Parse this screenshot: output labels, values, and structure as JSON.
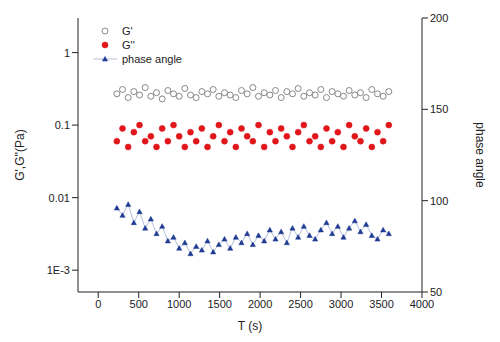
{
  "chart_data": {
    "type": "scatter",
    "x_label": "T (s)",
    "y_label": "G',G''(Pa)",
    "y2_label": "phase angle",
    "log": "y",
    "grid": false,
    "legend": "top-left",
    "xlim": [
      -250,
      4000
    ],
    "xticks": [
      0,
      500,
      1000,
      1500,
      2000,
      2500,
      3000,
      3500,
      4000
    ],
    "ylim": [
      0.0005,
      3
    ],
    "yticks": [
      {
        "value": 0.001,
        "label": "1E-3"
      },
      0.01,
      0.1,
      1
    ],
    "y2lim": [
      50,
      200
    ],
    "y2ticks": [
      50,
      100,
      150,
      200
    ],
    "x": [
      230,
      300,
      370,
      440,
      510,
      580,
      650,
      720,
      790,
      860,
      930,
      1000,
      1070,
      1140,
      1210,
      1280,
      1350,
      1420,
      1490,
      1560,
      1630,
      1700,
      1770,
      1840,
      1910,
      1980,
      2050,
      2120,
      2190,
      2260,
      2330,
      2400,
      2470,
      2540,
      2610,
      2680,
      2750,
      2820,
      2890,
      2960,
      3030,
      3100,
      3170,
      3240,
      3310,
      3380,
      3450,
      3520,
      3590
    ],
    "series": [
      {
        "name": "G'",
        "color": "#888888",
        "marker": "circle_open",
        "line_style": "none",
        "values": [
          0.27,
          0.31,
          0.24,
          0.29,
          0.26,
          0.33,
          0.25,
          0.28,
          0.23,
          0.3,
          0.27,
          0.25,
          0.32,
          0.26,
          0.24,
          0.29,
          0.27,
          0.31,
          0.25,
          0.28,
          0.26,
          0.24,
          0.3,
          0.27,
          0.33,
          0.25,
          0.28,
          0.26,
          0.3,
          0.24,
          0.29,
          0.27,
          0.32,
          0.25,
          0.28,
          0.26,
          0.31,
          0.24,
          0.29,
          0.27,
          0.25,
          0.3,
          0.26,
          0.28,
          0.24,
          0.31,
          0.27,
          0.25,
          0.29
        ]
      },
      {
        "name": "G''",
        "color": "#e0161b",
        "marker": "circle",
        "line_style": "none",
        "values": [
          0.06,
          0.09,
          0.05,
          0.08,
          0.1,
          0.06,
          0.07,
          0.05,
          0.09,
          0.06,
          0.1,
          0.07,
          0.05,
          0.08,
          0.06,
          0.09,
          0.05,
          0.07,
          0.1,
          0.06,
          0.08,
          0.05,
          0.09,
          0.07,
          0.06,
          0.1,
          0.05,
          0.08,
          0.06,
          0.09,
          0.07,
          0.05,
          0.08,
          0.1,
          0.06,
          0.07,
          0.05,
          0.09,
          0.06,
          0.08,
          0.05,
          0.1,
          0.07,
          0.06,
          0.09,
          0.05,
          0.08,
          0.06,
          0.1
        ]
      },
      {
        "name": "phase angle",
        "color": "#1f3a93",
        "marker": "triangle",
        "line_style": "solid",
        "axis": "y2",
        "values": [
          96,
          92,
          98,
          88,
          94,
          85,
          90,
          82,
          86,
          78,
          80,
          74,
          77,
          71,
          75,
          73,
          78,
          72,
          76,
          79,
          74,
          80,
          77,
          82,
          76,
          81,
          78,
          84,
          79,
          83,
          77,
          85,
          80,
          86,
          81,
          79,
          84,
          88,
          82,
          86,
          80,
          85,
          89,
          83,
          87,
          81,
          79,
          84,
          82
        ]
      }
    ]
  }
}
